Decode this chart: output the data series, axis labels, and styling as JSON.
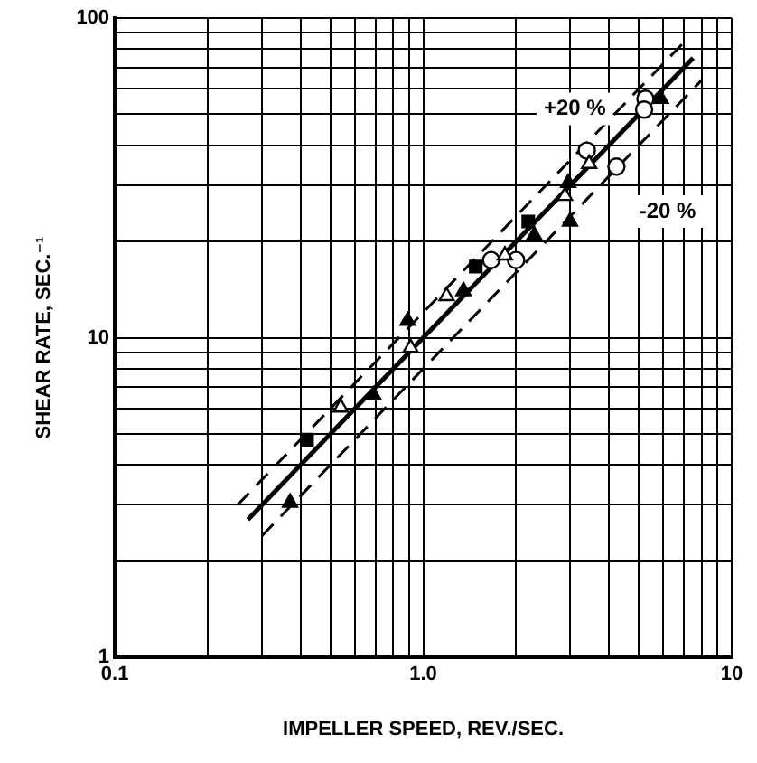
{
  "chart_data": {
    "type": "scatter",
    "xlabel": "IMPELLER SPEED, REV./SEC.",
    "ylabel": "SHEAR RATE, SEC.⁻¹",
    "log": "xy",
    "xlim": [
      0.1,
      10
    ],
    "ylim": [
      1,
      100
    ],
    "xticks": [
      {
        "value": 0.1,
        "label": "0.1"
      },
      {
        "value": 0.2,
        "label": null
      },
      {
        "value": 0.3,
        "label": null
      },
      {
        "value": 0.4,
        "label": null
      },
      {
        "value": 0.5,
        "label": null
      },
      {
        "value": 0.6,
        "label": null
      },
      {
        "value": 0.7,
        "label": null
      },
      {
        "value": 0.8,
        "label": null
      },
      {
        "value": 0.9,
        "label": null
      },
      {
        "value": 1,
        "label": "1.0"
      },
      {
        "value": 2,
        "label": null
      },
      {
        "value": 3,
        "label": null
      },
      {
        "value": 4,
        "label": null
      },
      {
        "value": 5,
        "label": null
      },
      {
        "value": 6,
        "label": null
      },
      {
        "value": 7,
        "label": null
      },
      {
        "value": 8,
        "label": null
      },
      {
        "value": 9,
        "label": null
      },
      10
    ],
    "yticks": [
      1,
      {
        "value": 2,
        "label": null
      },
      {
        "value": 3,
        "label": null
      },
      {
        "value": 4,
        "label": null
      },
      {
        "value": 5,
        "label": null
      },
      {
        "value": 6,
        "label": null
      },
      {
        "value": 7,
        "label": null
      },
      {
        "value": 8,
        "label": null
      },
      {
        "value": 9,
        "label": null
      },
      10,
      {
        "value": 20,
        "label": null
      },
      {
        "value": 30,
        "label": null
      },
      {
        "value": 40,
        "label": null
      },
      {
        "value": 50,
        "label": null
      },
      {
        "value": 60,
        "label": null
      },
      {
        "value": 70,
        "label": null
      },
      {
        "value": 80,
        "label": null
      },
      {
        "value": 90,
        "label": null
      },
      100
    ],
    "grid": true,
    "legend": false,
    "series": [
      {
        "marker": "triangle",
        "color": "#000000",
        "x": [
          0.37,
          0.69,
          0.89,
          1.35,
          2.29,
          2.99,
          2.95,
          5.89
        ],
        "values": [
          3.05,
          6.6,
          11.3,
          14.0,
          20.9,
          23.1,
          30.5,
          55.9
        ]
      },
      {
        "marker": "triangle",
        "color": "#ffffff",
        "x": [
          0.54,
          0.91,
          1.19,
          1.84,
          2.88,
          3.45
        ],
        "values": [
          6.05,
          9.3,
          13.5,
          18.1,
          27.8,
          35
        ]
      },
      {
        "marker": "square",
        "color": "#000000",
        "x": [
          0.42,
          1.48,
          2.19
        ],
        "values": [
          4.8,
          16.7,
          23.1
        ]
      },
      {
        "marker": "circle",
        "color": "#ffffff",
        "x": [
          1.66,
          2.0,
          3.39,
          4.23,
          5.25,
          5.2
        ],
        "values": [
          17.5,
          17.5,
          38.5,
          34.3,
          55.9,
          51.7
        ]
      },
      {
        "type": "line",
        "marker": "none",
        "line_style": "solid",
        "color": "#000000",
        "x": [
          0.27,
          7.5
        ],
        "values": [
          2.7,
          75
        ]
      },
      {
        "type": "line",
        "marker": "none",
        "line_style": "dashed",
        "color": "#000000",
        "x": [
          0.25,
          7
        ],
        "values": [
          3,
          84
        ]
      },
      {
        "type": "line",
        "marker": "none",
        "line_style": "dashed",
        "color": "#000000",
        "x": [
          0.3,
          8
        ],
        "values": [
          2.4,
          64
        ]
      }
    ],
    "annotations": [
      {
        "text": "+20 %",
        "x": 3.1,
        "y": 52
      },
      {
        "text": "-20 %",
        "x": 6.2,
        "y": 24.8
      }
    ]
  }
}
